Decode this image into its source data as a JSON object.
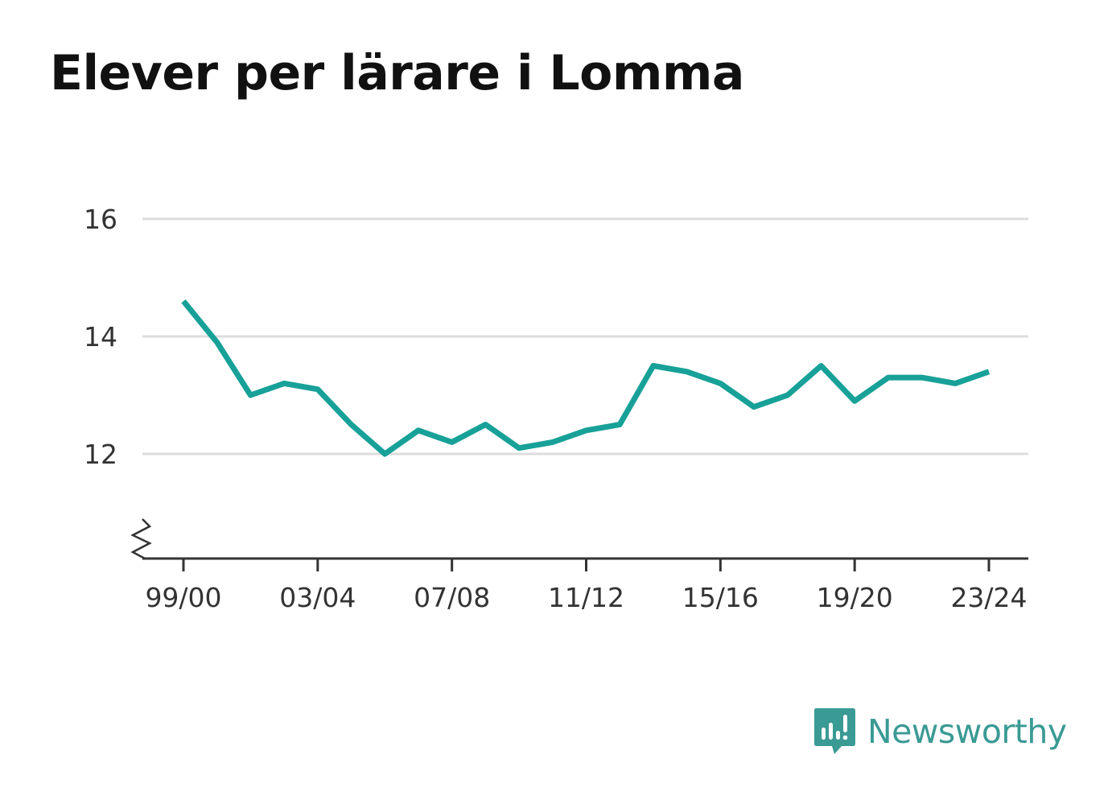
{
  "chart_data": {
    "type": "line",
    "title": "Elever per lärare i Lomma",
    "xlabel": "",
    "ylabel": "",
    "x": [
      "99/00",
      "00/01",
      "01/02",
      "02/03",
      "03/04",
      "04/05",
      "05/06",
      "06/07",
      "07/08",
      "08/09",
      "09/10",
      "10/11",
      "11/12",
      "12/13",
      "13/14",
      "14/15",
      "15/16",
      "16/17",
      "17/18",
      "18/19",
      "19/20",
      "20/21",
      "21/22",
      "22/23",
      "23/24"
    ],
    "x_tick_labels": [
      "99/00",
      "03/04",
      "07/08",
      "11/12",
      "15/16",
      "19/20",
      "23/24"
    ],
    "y_ticks": [
      12,
      14,
      16
    ],
    "y_tick_labels": [
      "12",
      "14",
      "16"
    ],
    "ylim": [
      10.2,
      16.2
    ],
    "y_axis_break": true,
    "grid": true,
    "line_color": "#17a198",
    "series": [
      {
        "values": [
          14.6,
          13.9,
          13.0,
          13.2,
          13.1,
          12.5,
          12.0,
          12.4,
          12.2,
          12.5,
          12.1,
          12.2,
          12.4,
          12.5,
          13.5,
          13.4,
          13.2,
          12.8,
          13.0,
          13.5,
          12.9,
          13.3,
          13.3,
          13.2,
          13.4
        ]
      }
    ]
  },
  "branding": {
    "logo_text": "Newsworthy",
    "logo_icon": "newsworthy-chat-bars-icon",
    "logo_color": "#3a9a94"
  }
}
